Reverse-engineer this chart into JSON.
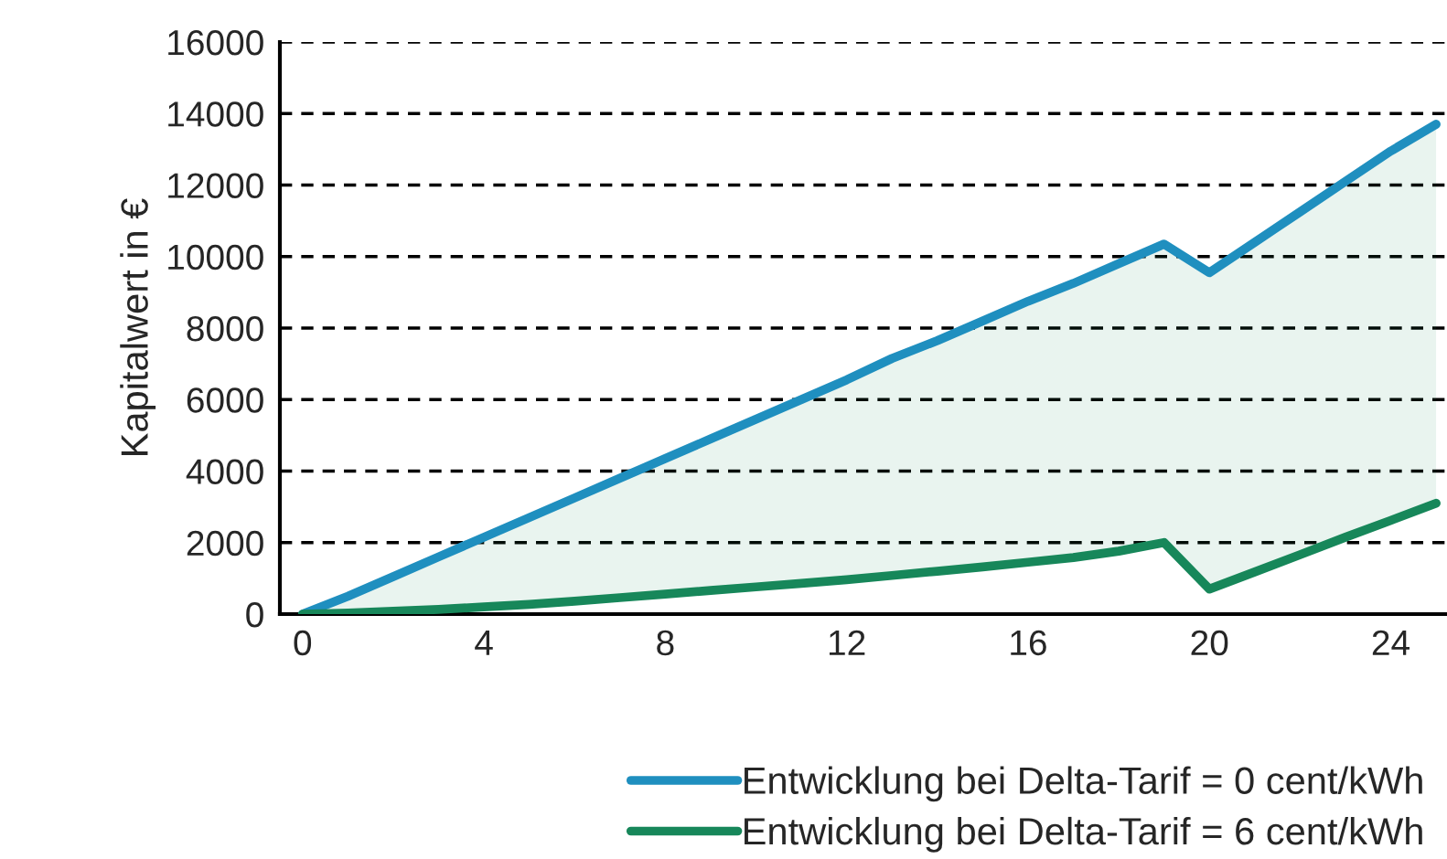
{
  "chart_data": {
    "type": "line",
    "ylabel": "Kapitalwert in €",
    "x": [
      0,
      1,
      2,
      3,
      4,
      5,
      6,
      7,
      8,
      9,
      10,
      11,
      12,
      13,
      14,
      15,
      16,
      17,
      18,
      19,
      20,
      21,
      22,
      23,
      24,
      25
    ],
    "series": [
      {
        "name": "Entwicklung bei Delta-Tarif = 0 cent/kWh",
        "color": "#1f8fbf",
        "values": [
          0,
          500,
          1050,
          1600,
          2150,
          2700,
          3250,
          3800,
          4350,
          4900,
          5450,
          6000,
          6550,
          7150,
          7650,
          8200,
          8750,
          9250,
          9800,
          10350,
          9550,
          10400,
          11250,
          12100,
          12950,
          13700
        ]
      },
      {
        "name": "Entwicklung bei Delta-Tarif = 6 cent/kWh",
        "color": "#17875a",
        "values": [
          0,
          30,
          80,
          130,
          200,
          270,
          360,
          460,
          560,
          660,
          760,
          860,
          960,
          1080,
          1200,
          1320,
          1450,
          1580,
          1760,
          2000,
          700,
          1180,
          1660,
          2150,
          2620,
          3100
        ],
        "lower": [
          0,
          30,
          80,
          130,
          200,
          270,
          360,
          460,
          560,
          660,
          760,
          860,
          960,
          1080,
          1200,
          1320,
          1450,
          1580,
          1760,
          2000,
          700,
          1180,
          1660,
          2150,
          2620,
          3100
        ],
        "upper": [
          0,
          500,
          1050,
          1600,
          2150,
          2700,
          3250,
          3800,
          4350,
          4900,
          5450,
          6000,
          6550,
          7150,
          7650,
          8200,
          8750,
          9250,
          9800,
          10350,
          9550,
          10400,
          11250,
          12100,
          12950,
          13700
        ]
      }
    ],
    "xlim": [
      -0.5,
      25.2
    ],
    "xticks": [
      0,
      4,
      8,
      12,
      16,
      20,
      24
    ],
    "ylim": [
      0,
      16000
    ],
    "yticks": [
      0,
      2000,
      4000,
      6000,
      8000,
      10000,
      12000,
      14000,
      16000
    ],
    "grid": "y",
    "line_style": "solid",
    "marker": "none",
    "legend": "bottom right"
  }
}
